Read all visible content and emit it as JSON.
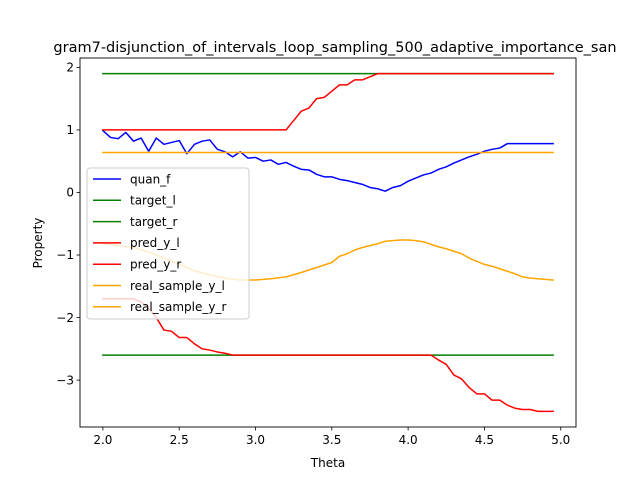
{
  "chart_data": {
    "type": "line",
    "title": "gram7-disjunction_of_intervals_loop_sampling_500_adaptive_importance_san",
    "xlabel": "Theta",
    "ylabel": "Property",
    "xlim": [
      1.85,
      5.1
    ],
    "ylim": [
      -3.75,
      2.15
    ],
    "xticks": [
      2.0,
      2.5,
      3.0,
      3.5,
      4.0,
      4.5,
      5.0
    ],
    "xtick_labels": [
      "2.0",
      "2.5",
      "3.0",
      "3.5",
      "4.0",
      "4.5",
      "5.0"
    ],
    "yticks": [
      2,
      1,
      0,
      -1,
      -2,
      -3
    ],
    "ytick_labels": [
      "2",
      "1",
      "0",
      "−1",
      "−2",
      "−3"
    ],
    "grid": false,
    "legend_position": "center-left",
    "series": [
      {
        "name": "quan_f",
        "color": "#0000ff",
        "x": [
          2.0,
          2.05,
          2.1,
          2.15,
          2.2,
          2.25,
          2.3,
          2.35,
          2.4,
          2.45,
          2.5,
          2.55,
          2.6,
          2.65,
          2.7,
          2.75,
          2.8,
          2.85,
          2.9,
          2.95,
          3.0,
          3.05,
          3.1,
          3.15,
          3.2,
          3.25,
          3.3,
          3.35,
          3.4,
          3.45,
          3.5,
          3.55,
          3.6,
          3.65,
          3.7,
          3.75,
          3.8,
          3.85,
          3.9,
          3.95,
          4.0,
          4.05,
          4.1,
          4.15,
          4.2,
          4.25,
          4.3,
          4.35,
          4.4,
          4.45,
          4.5,
          4.55,
          4.6,
          4.65,
          4.7,
          4.75,
          4.8,
          4.85,
          4.9,
          4.95
        ],
        "y": [
          0.99,
          0.88,
          0.86,
          0.96,
          0.82,
          0.87,
          0.66,
          0.87,
          0.77,
          0.8,
          0.83,
          0.62,
          0.77,
          0.82,
          0.84,
          0.69,
          0.65,
          0.57,
          0.65,
          0.55,
          0.56,
          0.5,
          0.52,
          0.45,
          0.48,
          0.42,
          0.37,
          0.36,
          0.29,
          0.25,
          0.25,
          0.21,
          0.19,
          0.16,
          0.13,
          0.08,
          0.06,
          0.02,
          0.08,
          0.11,
          0.18,
          0.23,
          0.28,
          0.31,
          0.37,
          0.41,
          0.47,
          0.52,
          0.57,
          0.61,
          0.66,
          0.69,
          0.71,
          0.78,
          0.78,
          0.78,
          0.78,
          0.78,
          0.78,
          0.78
        ]
      },
      {
        "name": "target_l",
        "color": "#008000",
        "x": [
          2.0,
          4.95
        ],
        "y": [
          -2.6,
          -2.6
        ]
      },
      {
        "name": "target_r",
        "color": "#008000",
        "x": [
          2.0,
          4.95
        ],
        "y": [
          1.9,
          1.9
        ]
      },
      {
        "name": "pred_y_l",
        "color": "#ff0000",
        "x": [
          2.0,
          2.1,
          2.2,
          2.25,
          2.3,
          2.35,
          2.4,
          2.45,
          2.5,
          2.55,
          2.6,
          2.65,
          2.7,
          2.75,
          2.8,
          2.85,
          2.9,
          2.95,
          3.0,
          3.1,
          3.2,
          3.3,
          3.4,
          3.5,
          3.6,
          3.7,
          3.8,
          3.9,
          4.0,
          4.1,
          4.15,
          4.2,
          4.25,
          4.3,
          4.35,
          4.4,
          4.45,
          4.5,
          4.55,
          4.6,
          4.65,
          4.7,
          4.75,
          4.8,
          4.85,
          4.9,
          4.95
        ],
        "y": [
          -1.7,
          -1.7,
          -1.7,
          -1.75,
          -1.85,
          -2.0,
          -2.2,
          -2.22,
          -2.32,
          -2.32,
          -2.42,
          -2.5,
          -2.52,
          -2.55,
          -2.57,
          -2.6,
          -2.6,
          -2.6,
          -2.6,
          -2.6,
          -2.6,
          -2.6,
          -2.6,
          -2.6,
          -2.6,
          -2.6,
          -2.6,
          -2.6,
          -2.6,
          -2.6,
          -2.6,
          -2.68,
          -2.75,
          -2.92,
          -2.98,
          -3.12,
          -3.22,
          -3.22,
          -3.32,
          -3.32,
          -3.4,
          -3.45,
          -3.47,
          -3.47,
          -3.5,
          -3.5,
          -3.5
        ]
      },
      {
        "name": "pred_y_r",
        "color": "#ff0000",
        "x": [
          2.0,
          2.2,
          2.4,
          2.6,
          2.8,
          3.0,
          3.1,
          3.2,
          3.25,
          3.3,
          3.35,
          3.4,
          3.45,
          3.5,
          3.55,
          3.6,
          3.65,
          3.7,
          3.75,
          3.8,
          3.85,
          3.9,
          3.95,
          4.0,
          4.2,
          4.4,
          4.6,
          4.8,
          4.95
        ],
        "y": [
          1.0,
          1.0,
          1.0,
          1.0,
          1.0,
          1.0,
          1.0,
          1.0,
          1.15,
          1.3,
          1.35,
          1.5,
          1.52,
          1.62,
          1.72,
          1.72,
          1.8,
          1.8,
          1.85,
          1.9,
          1.9,
          1.9,
          1.9,
          1.9,
          1.9,
          1.9,
          1.9,
          1.9,
          1.9
        ]
      },
      {
        "name": "real_sample_y_l",
        "color": "#ffa500",
        "x": [
          2.0,
          2.1,
          2.2,
          2.3,
          2.4,
          2.5,
          2.6,
          2.7,
          2.8,
          2.9,
          3.0,
          3.1,
          3.2,
          3.3,
          3.4,
          3.5,
          3.55,
          3.6,
          3.65,
          3.7,
          3.75,
          3.8,
          3.85,
          3.9,
          3.95,
          4.0,
          4.05,
          4.1,
          4.15,
          4.2,
          4.25,
          4.3,
          4.35,
          4.4,
          4.45,
          4.5,
          4.55,
          4.6,
          4.65,
          4.7,
          4.75,
          4.8,
          4.85,
          4.9,
          4.95
        ],
        "y": [
          -0.82,
          -0.85,
          -0.88,
          -0.95,
          -1.05,
          -1.15,
          -1.25,
          -1.32,
          -1.37,
          -1.4,
          -1.4,
          -1.38,
          -1.35,
          -1.28,
          -1.2,
          -1.12,
          -1.02,
          -0.98,
          -0.92,
          -0.88,
          -0.85,
          -0.82,
          -0.78,
          -0.77,
          -0.76,
          -0.76,
          -0.77,
          -0.79,
          -0.83,
          -0.87,
          -0.9,
          -0.94,
          -0.98,
          -1.05,
          -1.1,
          -1.15,
          -1.18,
          -1.22,
          -1.26,
          -1.3,
          -1.35,
          -1.37,
          -1.38,
          -1.39,
          -1.4
        ]
      },
      {
        "name": "real_sample_y_r",
        "color": "#ffa500",
        "x": [
          2.0,
          4.95
        ],
        "y": [
          0.64,
          0.64
        ]
      }
    ]
  }
}
